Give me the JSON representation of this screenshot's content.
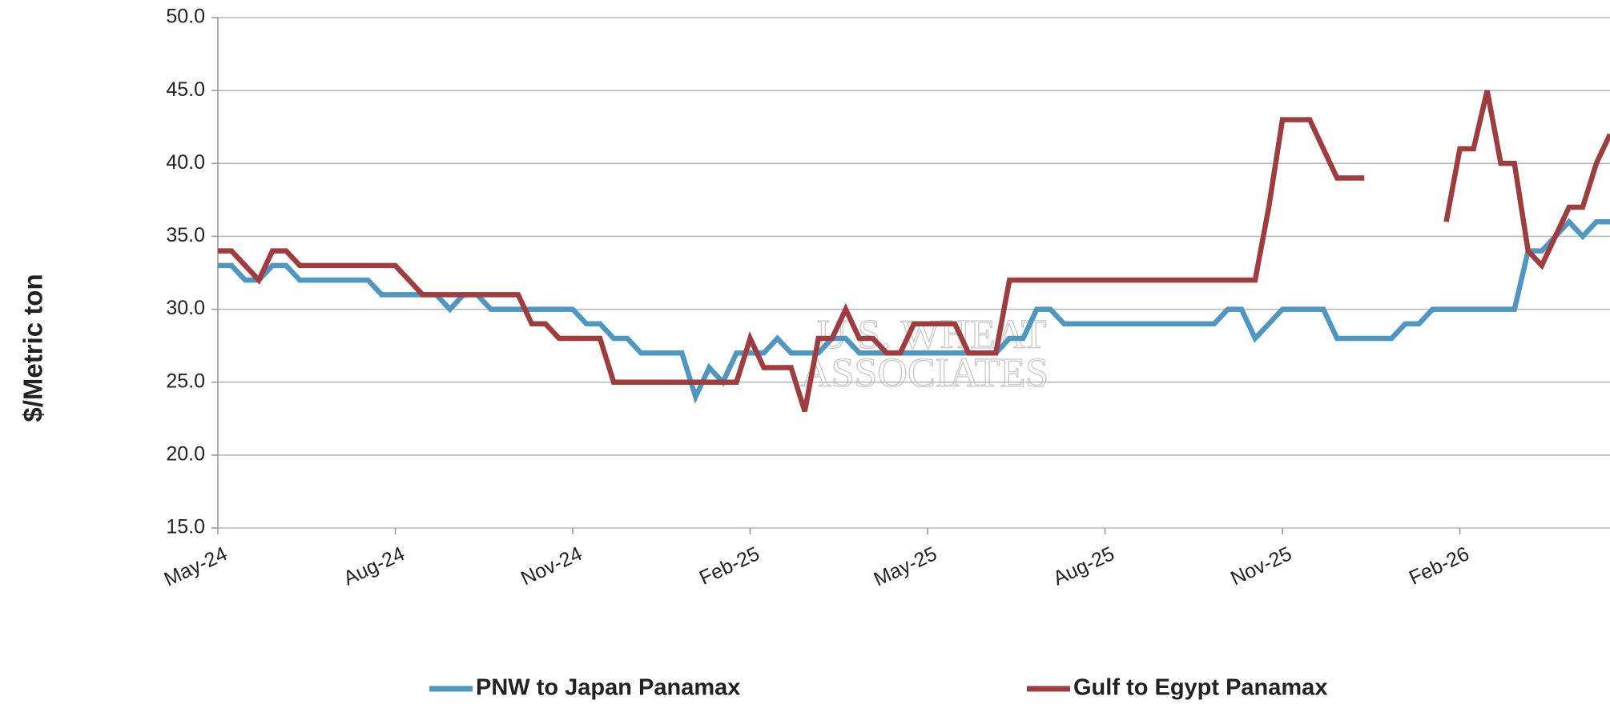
{
  "chart_data": {
    "type": "line",
    "y_label": "$/Metric ton",
    "watermark": [
      "U.S. WHEAT",
      "ASSOCIATES"
    ],
    "categories": [
      "May-24",
      null,
      null,
      null,
      null,
      null,
      null,
      null,
      null,
      null,
      null,
      null,
      null,
      "Aug-24",
      null,
      null,
      null,
      null,
      null,
      null,
      null,
      null,
      null,
      null,
      null,
      null,
      "Nov-24",
      null,
      null,
      null,
      null,
      null,
      null,
      null,
      null,
      null,
      null,
      null,
      null,
      "Feb-25",
      null,
      null,
      null,
      null,
      null,
      null,
      null,
      null,
      null,
      null,
      null,
      null,
      "May-25",
      null,
      null,
      null,
      null,
      null,
      null,
      null,
      null,
      null,
      null,
      null,
      null,
      "Aug-25",
      null,
      null,
      null,
      null,
      null,
      null,
      null,
      null,
      null,
      null,
      null,
      null,
      "Nov-25",
      null,
      null,
      null,
      null,
      null,
      null,
      null,
      null,
      null,
      null,
      null,
      null,
      "Feb-26",
      null,
      null,
      null,
      null,
      null,
      null,
      null,
      null,
      null,
      null,
      null
    ],
    "series": [
      {
        "name": "PNW to Japan Panamax",
        "color": "#4f97c0",
        "values": [
          33,
          33,
          32,
          32,
          33,
          33,
          32,
          32,
          32,
          32,
          32,
          32,
          31,
          31,
          31,
          31,
          31,
          30,
          31,
          31,
          30,
          30,
          30,
          30,
          30,
          30,
          30,
          29,
          29,
          28,
          28,
          27,
          27,
          27,
          27,
          24,
          26,
          25,
          27,
          27,
          27,
          28,
          27,
          27,
          27,
          28,
          28,
          27,
          27,
          27,
          27,
          27,
          27,
          27,
          27,
          27,
          27,
          27,
          28,
          28,
          30,
          30,
          29,
          29,
          29,
          29,
          29,
          29,
          29,
          29,
          29,
          29,
          29,
          29,
          30,
          30,
          28,
          29,
          30,
          30,
          30,
          30,
          28,
          28,
          28,
          28,
          28,
          29,
          29,
          30,
          30,
          30,
          30,
          30,
          30,
          30,
          34,
          34,
          35,
          36,
          35,
          36,
          36
        ]
      },
      {
        "name": "Gulf to Egypt Panamax",
        "color": "#a03c3e",
        "values": [
          34,
          34,
          33,
          32,
          34,
          34,
          33,
          33,
          33,
          33,
          33,
          33,
          33,
          33,
          32,
          31,
          31,
          31,
          31,
          31,
          31,
          31,
          31,
          29,
          29,
          28,
          28,
          28,
          28,
          25,
          25,
          25,
          25,
          25,
          25,
          25,
          25,
          25,
          25,
          28,
          26,
          26,
          26,
          23,
          28,
          28,
          30,
          28,
          28,
          27,
          27,
          29,
          29,
          29,
          29,
          27,
          27,
          27,
          32,
          32,
          32,
          32,
          32,
          32,
          32,
          32,
          32,
          32,
          32,
          32,
          32,
          32,
          32,
          32,
          32,
          32,
          32,
          37,
          43,
          43,
          43,
          41,
          39,
          39,
          39,
          null,
          null,
          null,
          null,
          null,
          36,
          41,
          41,
          45,
          40,
          40,
          34,
          33,
          35,
          37,
          37,
          40,
          42
        ]
      }
    ],
    "ylim": [
      15,
      50
    ],
    "yticks": [
      {
        "value": 15,
        "label": "15.0"
      },
      {
        "value": 20,
        "label": "20.0"
      },
      {
        "value": 25,
        "label": "25.0"
      },
      {
        "value": 30,
        "label": "30.0"
      },
      {
        "value": 35,
        "label": "35.0"
      },
      {
        "value": 40,
        "label": "40.0"
      },
      {
        "value": 45,
        "label": "45.0"
      },
      {
        "value": 50,
        "label": "50.0"
      }
    ],
    "grid": true,
    "legend": "bottom"
  }
}
